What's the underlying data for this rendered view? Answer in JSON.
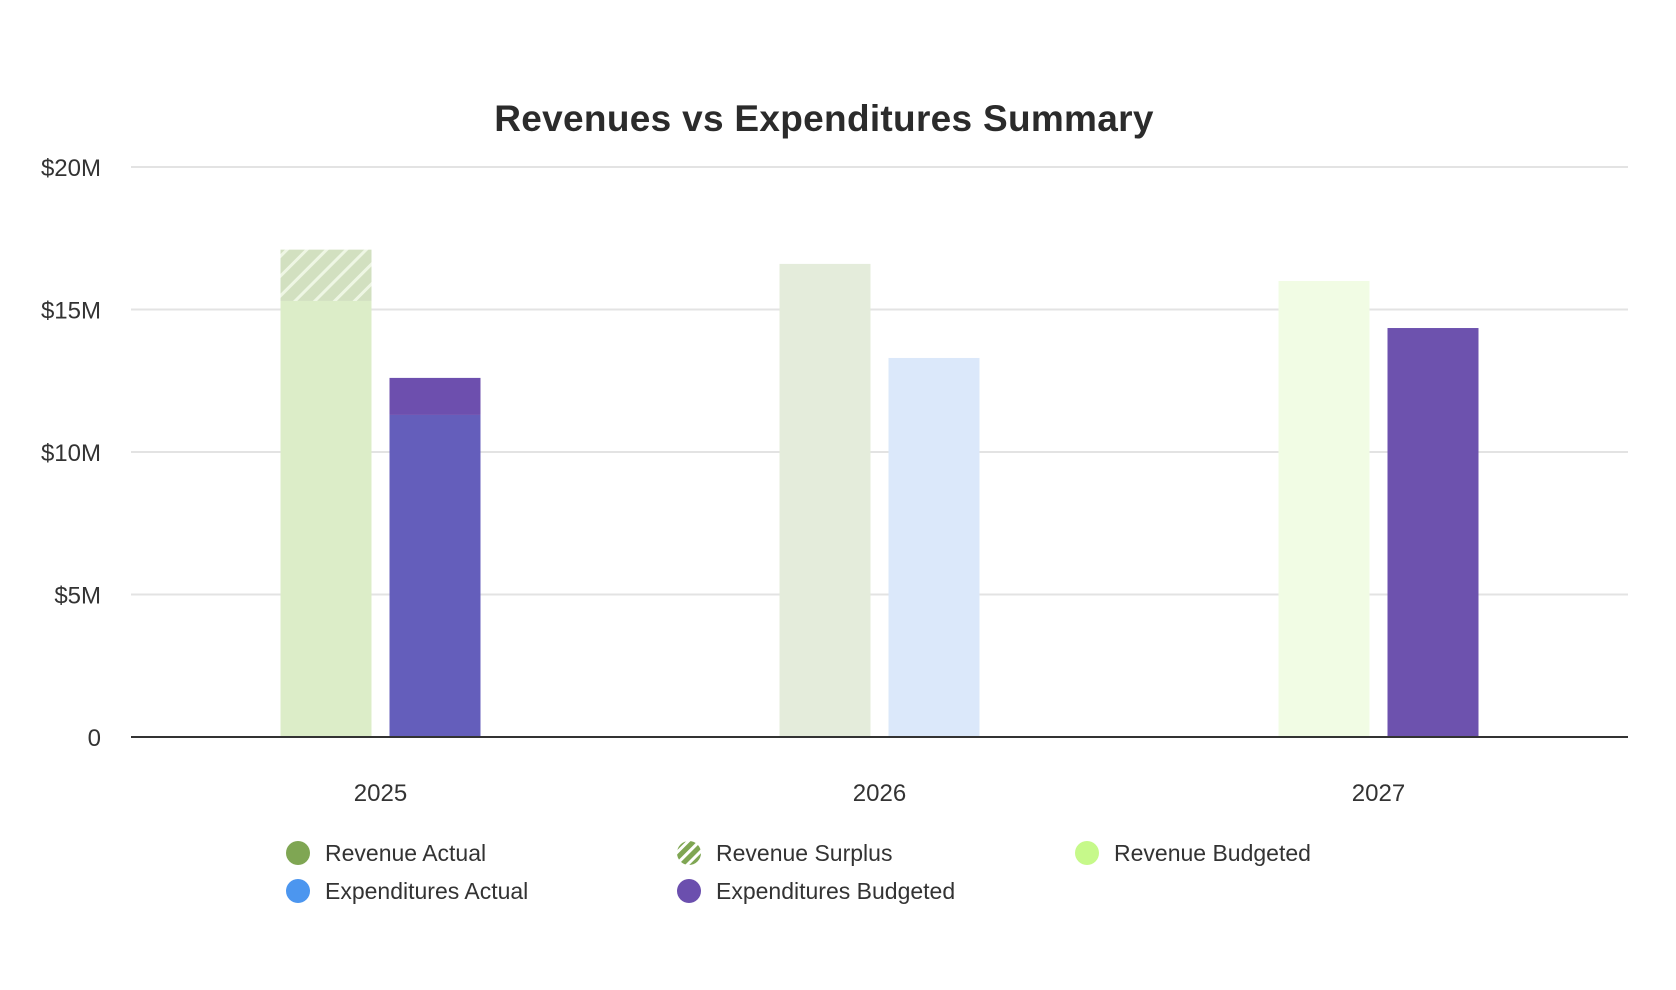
{
  "chart_data": {
    "type": "bar",
    "title": "Revenues vs Expenditures Summary",
    "xlabel": "",
    "ylabel": "",
    "ylim": [
      0,
      20000000
    ],
    "yticks": [
      0,
      5000000,
      10000000,
      15000000,
      20000000
    ],
    "ytick_labels": [
      "0",
      "$5M",
      "$10M",
      "$15M",
      "$20M"
    ],
    "grid": true,
    "legend_position": "bottom",
    "categories": [
      "2025",
      "2026",
      "2027"
    ],
    "series": [
      {
        "name": "Revenue Actual",
        "color": "#7fa653",
        "values": [
          15300000,
          null,
          null
        ],
        "group": "revenue",
        "stack": 0
      },
      {
        "name": "Revenue Surplus",
        "color": "#7fa653",
        "pattern": "hatch",
        "values": [
          1800000,
          null,
          null
        ],
        "group": "revenue",
        "stack": 1
      },
      {
        "name": "Revenue Budgeted",
        "color": "#c6f98a",
        "values": [
          null,
          16600000,
          16000000
        ],
        "group": "revenue",
        "stack": 0
      },
      {
        "name": "Expenditures Actual",
        "color": "#4c96ef",
        "values": [
          11300000,
          13300000,
          null
        ],
        "group": "expenditures",
        "stack": 0
      },
      {
        "name": "Expenditures Budgeted",
        "color": "#6b4fae",
        "values": [
          12600000,
          null,
          14350000
        ],
        "group": "expenditures",
        "stack": 1
      }
    ],
    "bars": [
      {
        "category": "2025",
        "group": "revenue",
        "segments": [
          {
            "series": "Revenue Actual",
            "from": 0,
            "to": 15300000,
            "fill": "#dcedc8"
          },
          {
            "series": "Revenue Surplus",
            "from": 15300000,
            "to": 17100000,
            "fill": "hatch"
          }
        ]
      },
      {
        "category": "2025",
        "group": "expenditures",
        "segments": [
          {
            "series": "Expenditures Actual",
            "from": 0,
            "to": 11300000,
            "fill": "#645ebb"
          },
          {
            "series": "Expenditures Budgeted",
            "from": 11300000,
            "to": 12600000,
            "fill": "#6d4fae"
          }
        ]
      },
      {
        "category": "2026",
        "group": "revenue",
        "segments": [
          {
            "series": "Revenue Budgeted",
            "from": 0,
            "to": 16600000,
            "fill": "#e4ecdb"
          }
        ]
      },
      {
        "category": "2026",
        "group": "expenditures",
        "segments": [
          {
            "series": "Expenditures Actual",
            "from": 0,
            "to": 13300000,
            "fill": "#dbe8fa"
          }
        ]
      },
      {
        "category": "2027",
        "group": "revenue",
        "segments": [
          {
            "series": "Revenue Budgeted",
            "from": 0,
            "to": 16000000,
            "fill": "#f1fce4"
          }
        ]
      },
      {
        "category": "2027",
        "group": "expenditures",
        "segments": [
          {
            "series": "Expenditures Budgeted",
            "from": 0,
            "to": 14350000,
            "fill": "#6d52ae"
          }
        ]
      }
    ],
    "legend": [
      {
        "label": "Revenue Actual",
        "color": "#7fa653",
        "marker": "circle"
      },
      {
        "label": "Revenue Surplus",
        "color": "#7fa653",
        "marker": "hatched-circle"
      },
      {
        "label": "Revenue Budgeted",
        "color": "#c6f98a",
        "marker": "circle"
      },
      {
        "label": "Expenditures Actual",
        "color": "#4c96ef",
        "marker": "circle"
      },
      {
        "label": "Expenditures Budgeted",
        "color": "#6b4fae",
        "marker": "circle"
      }
    ]
  }
}
